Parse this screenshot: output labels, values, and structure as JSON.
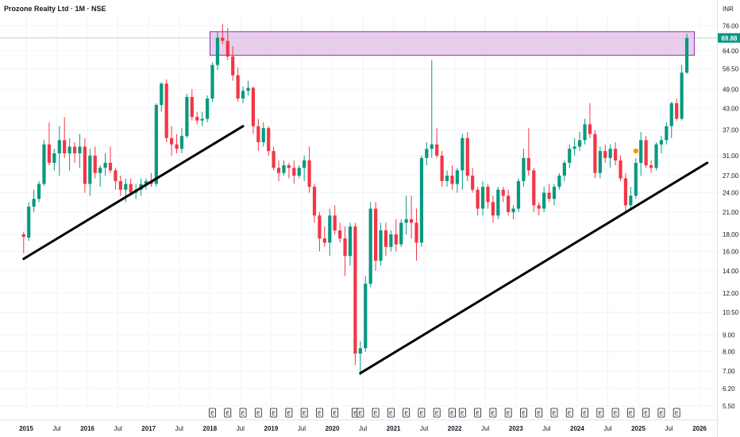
{
  "header": {
    "title": "Prozone Realty Ltd · 1M · NSE"
  },
  "chart_data": {
    "type": "candlestick",
    "currency": "INR",
    "scale": "log",
    "last_price_label": "69.88",
    "y_ticks": [
      "76.00",
      "64.00",
      "56.50",
      "49.00",
      "43.00",
      "37.00",
      "31.00",
      "27.00",
      "24.00",
      "21.00",
      "18.00",
      "16.00",
      "14.00",
      "12.00",
      "10.50",
      "9.00",
      "8.00",
      "7.00",
      "6.20",
      "5.50"
    ],
    "x_ticks": [
      "2015",
      "Jul",
      "2016",
      "Jul",
      "2017",
      "Jul",
      "2018",
      "Jul",
      "2019",
      "Jul",
      "2020",
      "Jul",
      "2021",
      "Jul",
      "2022",
      "Jul",
      "2023",
      "Jul",
      "2024",
      "Jul",
      "2025",
      "Jul",
      "2026"
    ],
    "colors": {
      "up": "#089981",
      "down": "#f23645",
      "zone_fill": "#e1bee7",
      "zone_border": "#9c27b0",
      "trendline": "#000000",
      "dividend_dot": "#ff9800"
    },
    "earnings_marker": "E",
    "candles": [
      {
        "date": "2014-12",
        "o": 18.0,
        "h": 18.3,
        "l": 15.8,
        "c": 17.7
      },
      {
        "date": "2015-01",
        "o": 17.6,
        "h": 22.5,
        "l": 17.2,
        "c": 21.8
      },
      {
        "date": "2015-02",
        "o": 21.8,
        "h": 24.5,
        "l": 21.0,
        "c": 23.0
      },
      {
        "date": "2015-03",
        "o": 23.0,
        "h": 26.0,
        "l": 22.5,
        "c": 25.5
      },
      {
        "date": "2015-04",
        "o": 25.5,
        "h": 34.5,
        "l": 25.2,
        "c": 33.5
      },
      {
        "date": "2015-05",
        "o": 33.5,
        "h": 39.0,
        "l": 29.0,
        "c": 29.5
      },
      {
        "date": "2015-06",
        "o": 29.5,
        "h": 32.5,
        "l": 28.0,
        "c": 31.5
      },
      {
        "date": "2015-07",
        "o": 31.5,
        "h": 38.0,
        "l": 27.0,
        "c": 34.5
      },
      {
        "date": "2015-08",
        "o": 34.5,
        "h": 40.5,
        "l": 30.5,
        "c": 31.5
      },
      {
        "date": "2015-09",
        "o": 31.5,
        "h": 35.0,
        "l": 28.0,
        "c": 33.0
      },
      {
        "date": "2015-10",
        "o": 33.0,
        "h": 34.0,
        "l": 29.5,
        "c": 31.5
      },
      {
        "date": "2015-11",
        "o": 31.5,
        "h": 36.0,
        "l": 28.5,
        "c": 33.0
      },
      {
        "date": "2015-12",
        "o": 33.0,
        "h": 35.0,
        "l": 24.0,
        "c": 25.5
      },
      {
        "date": "2016-01",
        "o": 25.5,
        "h": 32.5,
        "l": 23.5,
        "c": 31.0
      },
      {
        "date": "2016-02",
        "o": 31.0,
        "h": 33.0,
        "l": 26.5,
        "c": 27.5
      },
      {
        "date": "2016-03",
        "o": 27.5,
        "h": 29.0,
        "l": 25.0,
        "c": 28.5
      },
      {
        "date": "2016-04",
        "o": 28.5,
        "h": 31.5,
        "l": 27.0,
        "c": 29.5
      },
      {
        "date": "2016-05",
        "o": 29.5,
        "h": 33.0,
        "l": 27.5,
        "c": 28.0
      },
      {
        "date": "2016-06",
        "o": 28.0,
        "h": 28.5,
        "l": 24.5,
        "c": 26.0
      },
      {
        "date": "2016-07",
        "o": 26.0,
        "h": 27.0,
        "l": 23.5,
        "c": 24.5
      },
      {
        "date": "2016-08",
        "o": 24.5,
        "h": 26.5,
        "l": 22.5,
        "c": 25.5
      },
      {
        "date": "2016-09",
        "o": 25.5,
        "h": 26.5,
        "l": 23.5,
        "c": 24.0
      },
      {
        "date": "2016-10",
        "o": 24.0,
        "h": 25.5,
        "l": 23.0,
        "c": 24.5
      },
      {
        "date": "2016-11",
        "o": 24.5,
        "h": 26.5,
        "l": 23.5,
        "c": 25.5
      },
      {
        "date": "2016-12",
        "o": 25.5,
        "h": 26.5,
        "l": 24.5,
        "c": 26.0
      },
      {
        "date": "2017-01",
        "o": 26.0,
        "h": 27.5,
        "l": 25.0,
        "c": 25.5
      },
      {
        "date": "2017-02",
        "o": 25.5,
        "h": 44.5,
        "l": 25.0,
        "c": 44.0
      },
      {
        "date": "2017-03",
        "o": 44.0,
        "h": 51.5,
        "l": 42.0,
        "c": 51.0
      },
      {
        "date": "2017-04",
        "o": 51.0,
        "h": 52.5,
        "l": 34.0,
        "c": 35.0
      },
      {
        "date": "2017-05",
        "o": 35.0,
        "h": 38.0,
        "l": 31.0,
        "c": 33.5
      },
      {
        "date": "2017-06",
        "o": 33.5,
        "h": 36.0,
        "l": 31.5,
        "c": 32.5
      },
      {
        "date": "2017-07",
        "o": 32.5,
        "h": 37.5,
        "l": 31.5,
        "c": 35.5
      },
      {
        "date": "2017-08",
        "o": 35.5,
        "h": 47.5,
        "l": 35.0,
        "c": 46.5
      },
      {
        "date": "2017-09",
        "o": 46.5,
        "h": 49.0,
        "l": 39.5,
        "c": 40.5
      },
      {
        "date": "2017-10",
        "o": 40.5,
        "h": 42.0,
        "l": 38.5,
        "c": 39.5
      },
      {
        "date": "2017-11",
        "o": 39.5,
        "h": 42.0,
        "l": 38.0,
        "c": 40.0
      },
      {
        "date": "2017-12",
        "o": 40.0,
        "h": 47.0,
        "l": 39.0,
        "c": 46.0
      },
      {
        "date": "2018-01",
        "o": 46.0,
        "h": 59.0,
        "l": 45.0,
        "c": 58.0
      },
      {
        "date": "2018-02",
        "o": 58.0,
        "h": 73.0,
        "l": 56.0,
        "c": 70.0
      },
      {
        "date": "2018-03",
        "o": 70.0,
        "h": 77.0,
        "l": 67.0,
        "c": 68.5
      },
      {
        "date": "2018-04",
        "o": 68.5,
        "h": 75.0,
        "l": 60.0,
        "c": 61.5
      },
      {
        "date": "2018-05",
        "o": 61.5,
        "h": 66.0,
        "l": 52.0,
        "c": 54.0
      },
      {
        "date": "2018-06",
        "o": 54.0,
        "h": 57.0,
        "l": 45.0,
        "c": 46.0
      },
      {
        "date": "2018-07",
        "o": 46.0,
        "h": 50.0,
        "l": 44.5,
        "c": 48.5
      },
      {
        "date": "2018-08",
        "o": 48.5,
        "h": 52.0,
        "l": 47.0,
        "c": 49.5
      },
      {
        "date": "2018-09",
        "o": 49.5,
        "h": 50.0,
        "l": 36.0,
        "c": 38.0
      },
      {
        "date": "2018-10",
        "o": 38.0,
        "h": 40.0,
        "l": 32.0,
        "c": 34.0
      },
      {
        "date": "2018-11",
        "o": 34.0,
        "h": 39.0,
        "l": 33.0,
        "c": 37.5
      },
      {
        "date": "2018-12",
        "o": 37.5,
        "h": 38.0,
        "l": 31.0,
        "c": 32.0
      },
      {
        "date": "2019-01",
        "o": 32.0,
        "h": 33.0,
        "l": 28.0,
        "c": 28.5
      },
      {
        "date": "2019-02",
        "o": 28.5,
        "h": 30.0,
        "l": 26.0,
        "c": 27.5
      },
      {
        "date": "2019-03",
        "o": 27.5,
        "h": 30.0,
        "l": 27.0,
        "c": 29.0
      },
      {
        "date": "2019-04",
        "o": 29.0,
        "h": 29.5,
        "l": 26.5,
        "c": 28.5
      },
      {
        "date": "2019-05",
        "o": 28.5,
        "h": 30.0,
        "l": 25.5,
        "c": 27.0
      },
      {
        "date": "2019-06",
        "o": 27.0,
        "h": 29.0,
        "l": 26.5,
        "c": 28.5
      },
      {
        "date": "2019-07",
        "o": 28.5,
        "h": 31.0,
        "l": 26.0,
        "c": 30.0
      },
      {
        "date": "2019-08",
        "o": 30.0,
        "h": 33.0,
        "l": 24.0,
        "c": 25.0
      },
      {
        "date": "2019-09",
        "o": 25.0,
        "h": 25.5,
        "l": 19.5,
        "c": 20.5
      },
      {
        "date": "2019-10",
        "o": 20.5,
        "h": 21.0,
        "l": 16.0,
        "c": 17.5
      },
      {
        "date": "2019-11",
        "o": 17.5,
        "h": 19.0,
        "l": 16.5,
        "c": 17.0
      },
      {
        "date": "2019-12",
        "o": 17.0,
        "h": 21.5,
        "l": 15.5,
        "c": 20.5
      },
      {
        "date": "2020-01",
        "o": 20.5,
        "h": 22.0,
        "l": 18.0,
        "c": 18.5
      },
      {
        "date": "2020-02",
        "o": 18.5,
        "h": 19.5,
        "l": 17.0,
        "c": 17.5
      },
      {
        "date": "2020-03",
        "o": 17.5,
        "h": 19.0,
        "l": 13.5,
        "c": 15.5
      },
      {
        "date": "2020-04",
        "o": 15.5,
        "h": 19.5,
        "l": 14.5,
        "c": 19.0
      },
      {
        "date": "2020-05",
        "o": 19.0,
        "h": 19.5,
        "l": 7.3,
        "c": 7.9
      },
      {
        "date": "2020-06",
        "o": 7.9,
        "h": 8.6,
        "l": 6.8,
        "c": 8.2
      },
      {
        "date": "2020-07",
        "o": 8.2,
        "h": 13.5,
        "l": 8.0,
        "c": 12.8
      },
      {
        "date": "2020-08",
        "o": 12.8,
        "h": 22.5,
        "l": 12.5,
        "c": 21.5
      },
      {
        "date": "2020-09",
        "o": 21.5,
        "h": 22.5,
        "l": 14.0,
        "c": 15.0
      },
      {
        "date": "2020-10",
        "o": 15.0,
        "h": 19.5,
        "l": 14.5,
        "c": 18.5
      },
      {
        "date": "2020-11",
        "o": 18.5,
        "h": 19.5,
        "l": 15.5,
        "c": 16.5
      },
      {
        "date": "2020-12",
        "o": 16.5,
        "h": 18.5,
        "l": 16.0,
        "c": 18.0
      },
      {
        "date": "2021-01",
        "o": 18.0,
        "h": 20.0,
        "l": 16.0,
        "c": 16.8
      },
      {
        "date": "2021-02",
        "o": 16.8,
        "h": 20.0,
        "l": 16.5,
        "c": 19.5
      },
      {
        "date": "2021-03",
        "o": 19.5,
        "h": 23.5,
        "l": 18.0,
        "c": 20.0
      },
      {
        "date": "2021-04",
        "o": 20.0,
        "h": 23.5,
        "l": 17.5,
        "c": 19.5
      },
      {
        "date": "2021-05",
        "o": 19.5,
        "h": 21.5,
        "l": 15.0,
        "c": 17.0
      },
      {
        "date": "2021-06",
        "o": 17.0,
        "h": 31.0,
        "l": 16.5,
        "c": 30.5
      },
      {
        "date": "2021-07",
        "o": 30.5,
        "h": 34.0,
        "l": 29.0,
        "c": 32.5
      },
      {
        "date": "2021-08",
        "o": 32.5,
        "h": 60.0,
        "l": 30.5,
        "c": 33.5
      },
      {
        "date": "2021-09",
        "o": 33.5,
        "h": 37.5,
        "l": 30.5,
        "c": 31.0
      },
      {
        "date": "2021-10",
        "o": 31.0,
        "h": 32.0,
        "l": 25.0,
        "c": 26.0
      },
      {
        "date": "2021-11",
        "o": 26.0,
        "h": 28.0,
        "l": 25.0,
        "c": 27.0
      },
      {
        "date": "2021-12",
        "o": 27.0,
        "h": 29.0,
        "l": 24.5,
        "c": 25.5
      },
      {
        "date": "2022-01",
        "o": 25.5,
        "h": 28.5,
        "l": 24.0,
        "c": 28.0
      },
      {
        "date": "2022-02",
        "o": 28.0,
        "h": 36.0,
        "l": 24.5,
        "c": 35.0
      },
      {
        "date": "2022-03",
        "o": 35.0,
        "h": 36.5,
        "l": 26.0,
        "c": 27.0
      },
      {
        "date": "2022-04",
        "o": 27.0,
        "h": 28.5,
        "l": 24.0,
        "c": 24.5
      },
      {
        "date": "2022-05",
        "o": 24.5,
        "h": 25.0,
        "l": 20.5,
        "c": 21.5
      },
      {
        "date": "2022-06",
        "o": 21.5,
        "h": 26.0,
        "l": 20.5,
        "c": 25.0
      },
      {
        "date": "2022-07",
        "o": 25.0,
        "h": 25.5,
        "l": 21.5,
        "c": 22.5
      },
      {
        "date": "2022-08",
        "o": 22.5,
        "h": 23.5,
        "l": 19.5,
        "c": 20.5
      },
      {
        "date": "2022-09",
        "o": 20.5,
        "h": 25.0,
        "l": 20.0,
        "c": 24.5
      },
      {
        "date": "2022-10",
        "o": 24.5,
        "h": 25.0,
        "l": 22.5,
        "c": 23.5
      },
      {
        "date": "2022-11",
        "o": 23.5,
        "h": 24.5,
        "l": 20.5,
        "c": 21.0
      },
      {
        "date": "2022-12",
        "o": 21.0,
        "h": 22.0,
        "l": 20.0,
        "c": 21.5
      },
      {
        "date": "2023-01",
        "o": 21.5,
        "h": 26.5,
        "l": 21.0,
        "c": 26.0
      },
      {
        "date": "2023-02",
        "o": 26.0,
        "h": 32.5,
        "l": 25.0,
        "c": 30.5
      },
      {
        "date": "2023-03",
        "o": 30.5,
        "h": 37.5,
        "l": 27.0,
        "c": 28.0
      },
      {
        "date": "2023-04",
        "o": 28.0,
        "h": 28.5,
        "l": 21.0,
        "c": 22.0
      },
      {
        "date": "2023-05",
        "o": 22.0,
        "h": 22.5,
        "l": 20.5,
        "c": 21.5
      },
      {
        "date": "2023-06",
        "o": 21.5,
        "h": 25.0,
        "l": 21.0,
        "c": 24.0
      },
      {
        "date": "2023-07",
        "o": 24.0,
        "h": 25.5,
        "l": 22.5,
        "c": 23.0
      },
      {
        "date": "2023-08",
        "o": 23.0,
        "h": 25.5,
        "l": 22.0,
        "c": 25.0
      },
      {
        "date": "2023-09",
        "o": 25.0,
        "h": 27.5,
        "l": 24.5,
        "c": 27.0
      },
      {
        "date": "2023-10",
        "o": 27.0,
        "h": 30.0,
        "l": 26.0,
        "c": 29.5
      },
      {
        "date": "2023-11",
        "o": 29.5,
        "h": 33.5,
        "l": 28.5,
        "c": 32.5
      },
      {
        "date": "2023-12",
        "o": 32.5,
        "h": 35.0,
        "l": 31.0,
        "c": 33.0
      },
      {
        "date": "2024-01",
        "o": 33.0,
        "h": 36.5,
        "l": 32.0,
        "c": 34.5
      },
      {
        "date": "2024-02",
        "o": 34.5,
        "h": 40.0,
        "l": 33.5,
        "c": 38.5
      },
      {
        "date": "2024-03",
        "o": 38.5,
        "h": 44.5,
        "l": 35.0,
        "c": 36.0
      },
      {
        "date": "2024-04",
        "o": 36.0,
        "h": 37.0,
        "l": 26.5,
        "c": 27.5
      },
      {
        "date": "2024-05",
        "o": 27.5,
        "h": 33.0,
        "l": 26.5,
        "c": 32.0
      },
      {
        "date": "2024-06",
        "o": 32.0,
        "h": 33.5,
        "l": 29.5,
        "c": 30.5
      },
      {
        "date": "2024-07",
        "o": 30.5,
        "h": 33.5,
        "l": 28.5,
        "c": 32.5
      },
      {
        "date": "2024-08",
        "o": 32.5,
        "h": 34.0,
        "l": 29.0,
        "c": 30.0
      },
      {
        "date": "2024-09",
        "o": 30.0,
        "h": 31.0,
        "l": 26.0,
        "c": 26.5
      },
      {
        "date": "2024-10",
        "o": 26.5,
        "h": 27.5,
        "l": 21.0,
        "c": 22.0
      },
      {
        "date": "2024-11",
        "o": 22.0,
        "h": 25.0,
        "l": 21.5,
        "c": 23.5
      },
      {
        "date": "2024-12",
        "o": 23.5,
        "h": 30.5,
        "l": 23.0,
        "c": 29.5
      },
      {
        "date": "2025-01",
        "o": 29.5,
        "h": 36.5,
        "l": 27.0,
        "c": 34.5
      },
      {
        "date": "2025-02",
        "o": 34.5,
        "h": 35.5,
        "l": 28.5,
        "c": 29.0
      },
      {
        "date": "2025-03",
        "o": 29.0,
        "h": 30.0,
        "l": 27.5,
        "c": 28.5
      },
      {
        "date": "2025-04",
        "o": 28.5,
        "h": 34.0,
        "l": 28.0,
        "c": 33.5
      },
      {
        "date": "2025-05",
        "o": 33.5,
        "h": 35.5,
        "l": 31.5,
        "c": 34.5
      },
      {
        "date": "2025-06",
        "o": 34.5,
        "h": 39.0,
        "l": 33.5,
        "c": 38.0
      },
      {
        "date": "2025-07",
        "o": 38.0,
        "h": 45.0,
        "l": 35.0,
        "c": 44.5
      },
      {
        "date": "2025-08",
        "o": 44.5,
        "h": 46.0,
        "l": 39.5,
        "c": 40.0
      },
      {
        "date": "2025-09",
        "o": 40.0,
        "h": 58.0,
        "l": 39.5,
        "c": 55.0
      },
      {
        "date": "2025-10",
        "o": 55.0,
        "h": 72.0,
        "l": 54.5,
        "c": 69.88
      }
    ],
    "earnings_dates": [
      "2018-01",
      "2018-04",
      "2018-07",
      "2018-10",
      "2019-01",
      "2019-04",
      "2019-07",
      "2019-10",
      "2020-01",
      "2020-05",
      "2020-06",
      "2020-09",
      "2020-12",
      "2021-03",
      "2021-06",
      "2021-09",
      "2021-12",
      "2022-02",
      "2022-05",
      "2022-08",
      "2022-11",
      "2023-02",
      "2023-05",
      "2023-08",
      "2023-11",
      "2024-02",
      "2024-05",
      "2024-08",
      "2024-11",
      "2025-02",
      "2025-05",
      "2025-08"
    ],
    "dividend_dates": [
      "2024-12"
    ],
    "resistance_zone": {
      "low": 62.0,
      "high": 73.0,
      "from": "2018-01",
      "to": "2025-11"
    },
    "trendlines": [
      {
        "from": {
          "date": "2014-12",
          "value": 15.2
        },
        "to": {
          "date": "2018-07",
          "value": 38.0
        }
      },
      {
        "from": {
          "date": "2020-06",
          "value": 6.9
        },
        "to": {
          "date": "2026-02",
          "value": 29.5
        }
      }
    ]
  }
}
